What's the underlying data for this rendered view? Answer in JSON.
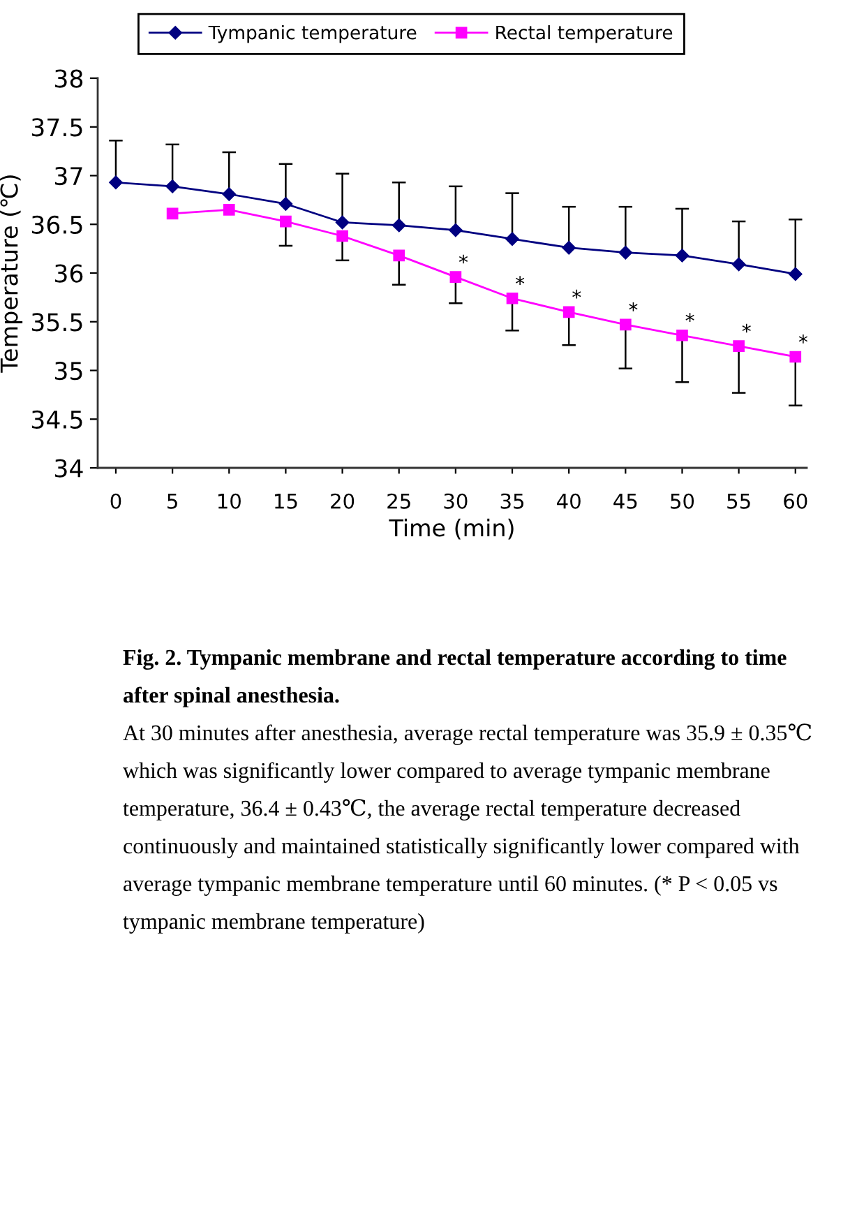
{
  "chart_data": {
    "type": "line",
    "xlabel": "Time (min)",
    "ylabel": "Temperature (℃)",
    "x": [
      0,
      5,
      10,
      15,
      20,
      25,
      30,
      35,
      40,
      45,
      50,
      55,
      60
    ],
    "series": [
      {
        "name": "Tympanic temperature",
        "color": "#000080",
        "marker": "diamond",
        "values": [
          36.93,
          36.89,
          36.81,
          36.71,
          36.52,
          36.49,
          36.44,
          36.35,
          36.26,
          36.21,
          36.18,
          36.09,
          35.99
        ],
        "errors": [
          [
            36.93,
            37.36
          ],
          [
            36.89,
            37.32
          ],
          [
            36.81,
            37.24
          ],
          [
            36.71,
            37.12
          ],
          [
            36.52,
            37.02
          ],
          [
            36.49,
            36.93
          ],
          [
            36.44,
            36.89
          ],
          [
            36.35,
            36.82
          ],
          [
            36.26,
            36.68
          ],
          [
            36.21,
            36.68
          ],
          [
            36.18,
            36.66
          ],
          [
            36.09,
            36.53
          ],
          [
            35.99,
            36.55
          ]
        ]
      },
      {
        "name": "Rectal temperature",
        "color": "#ff00ff",
        "marker": "square",
        "values": [
          null,
          36.61,
          36.65,
          36.53,
          36.38,
          36.18,
          35.96,
          35.74,
          35.6,
          35.47,
          35.36,
          35.25,
          35.14
        ],
        "errors": [
          null,
          null,
          null,
          [
            36.28,
            36.53
          ],
          [
            36.13,
            36.38
          ],
          [
            35.88,
            36.18
          ],
          [
            35.69,
            35.96
          ],
          [
            35.41,
            35.74
          ],
          [
            35.26,
            35.6
          ],
          [
            35.02,
            35.47
          ],
          [
            34.88,
            35.36
          ],
          [
            34.77,
            35.25
          ],
          [
            34.64,
            35.14
          ]
        ]
      }
    ],
    "xlim": [
      -1.6,
      61
    ],
    "ylim": [
      34,
      38
    ],
    "xticks": [
      0,
      5,
      10,
      15,
      20,
      25,
      30,
      35,
      40,
      45,
      50,
      55,
      60
    ],
    "yticks": [
      34,
      34.5,
      35,
      35.5,
      36,
      36.5,
      37,
      37.5,
      38
    ],
    "legend": "top",
    "grid": false,
    "annotations": [
      {
        "text": "*",
        "x": 30,
        "y": 35.96
      },
      {
        "text": "*",
        "x": 35,
        "y": 35.74
      },
      {
        "text": "*",
        "x": 40,
        "y": 35.6
      },
      {
        "text": "*",
        "x": 45,
        "y": 35.47
      },
      {
        "text": "*",
        "x": 50,
        "y": 35.36
      },
      {
        "text": "*",
        "x": 55,
        "y": 35.25
      },
      {
        "text": "*",
        "x": 60,
        "y": 35.14
      },
      "Fig. 2. Tympanic membrane and rectal temperature according to time after spinal anesthesia.",
      "At 30 minutes after anesthesia, average rectal temperature was 35.9 ± 0.35℃ which was significantly lower compared to average tympanic membrane temperature, 36.4 ± 0.43℃, the average rectal temperature decreased continuously and maintained statistically significantly lower compared with average tympanic membrane temperature until 60 minutes. (* P < 0.05 vs tympanic membrane temperature)"
    ]
  }
}
